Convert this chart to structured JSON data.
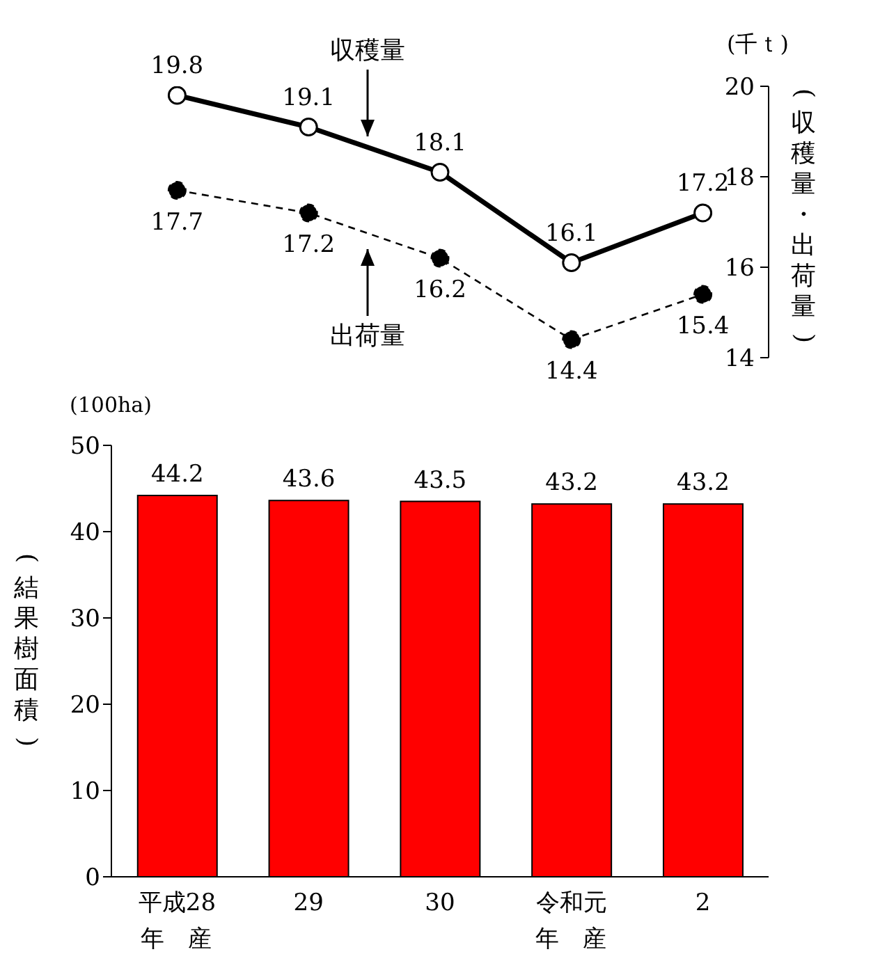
{
  "chart_data": [
    {
      "type": "line",
      "categories": [
        "平成28年産",
        "29",
        "30",
        "令和元年産",
        "2"
      ],
      "series": [
        {
          "name": "収穫量",
          "color": "#000000",
          "values": [
            19.8,
            19.1,
            18.1,
            16.1,
            17.2
          ],
          "line_style": "solid"
        },
        {
          "name": "出荷量",
          "color": "#000000",
          "values": [
            17.7,
            17.2,
            16.2,
            14.4,
            15.4
          ],
          "line_style": "dashed"
        }
      ],
      "ylim": [
        14,
        20
      ],
      "yticks": [
        14,
        16,
        18,
        20
      ],
      "ylabel": "(収穫量・出荷量)",
      "annotations": [
        "(千ｔ)"
      ],
      "tick_labels": "y",
      "data_labels": true,
      "marker": "circle",
      "grid": false,
      "legend": false
    },
    {
      "type": "bar",
      "categories": [
        "平成28年産",
        "29",
        "30",
        "令和元年産",
        "2"
      ],
      "values": [
        44.2,
        43.6,
        43.5,
        43.2,
        43.2
      ],
      "color": "#ff0000",
      "ylim": [
        0,
        50
      ],
      "yticks": [
        0,
        10,
        20,
        30,
        40,
        50
      ],
      "ylabel": "(結果樹面積)",
      "annotations": [
        "(100ha)"
      ],
      "data_labels": true,
      "grid": false,
      "legend": false
    }
  ]
}
